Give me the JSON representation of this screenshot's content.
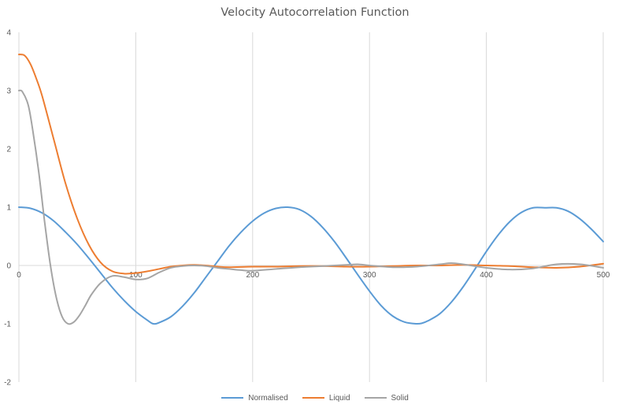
{
  "chart_data": {
    "type": "line",
    "title": "Velocity Autocorrelation Function",
    "xlabel": "",
    "ylabel": "",
    "xlim": [
      0,
      500
    ],
    "ylim": [
      -2,
      4
    ],
    "x_ticks": [
      {
        "value": 0,
        "label": "0"
      },
      {
        "value": 100,
        "label": "100"
      },
      {
        "value": 200,
        "label": "200"
      },
      {
        "value": 300,
        "label": "300"
      },
      {
        "value": 400,
        "label": "400"
      },
      {
        "value": 500,
        "label": "500"
      }
    ],
    "y_ticks": [
      {
        "value": 4,
        "label": "4"
      },
      {
        "value": 3,
        "label": "3"
      },
      {
        "value": 2,
        "label": "2"
      },
      {
        "value": 1,
        "label": "1"
      },
      {
        "value": 0,
        "label": "0"
      },
      {
        "value": -1,
        "label": "-1"
      },
      {
        "value": -2,
        "label": "-2"
      }
    ],
    "grid": "vertical",
    "legend_position": "bottom",
    "series": [
      {
        "name": "Normalised",
        "color": "#5b9bd5",
        "x": [
          0,
          10,
          20,
          30,
          40,
          50,
          60,
          70,
          80,
          90,
          100,
          110,
          115,
          120,
          130,
          140,
          150,
          160,
          170,
          180,
          190,
          200,
          210,
          220,
          230,
          240,
          250,
          260,
          270,
          280,
          290,
          300,
          310,
          320,
          330,
          340,
          345,
          350,
          360,
          370,
          380,
          390,
          400,
          410,
          420,
          430,
          440,
          450,
          460,
          470,
          480,
          490,
          500
        ],
        "y": [
          1.0,
          0.98,
          0.9,
          0.76,
          0.57,
          0.36,
          0.12,
          -0.13,
          -0.38,
          -0.6,
          -0.79,
          -0.94,
          -1.0,
          -0.98,
          -0.88,
          -0.7,
          -0.47,
          -0.2,
          0.07,
          0.34,
          0.57,
          0.76,
          0.9,
          0.98,
          1.0,
          0.96,
          0.84,
          0.65,
          0.41,
          0.13,
          -0.16,
          -0.44,
          -0.69,
          -0.87,
          -0.97,
          -1.0,
          -0.99,
          -0.95,
          -0.83,
          -0.63,
          -0.37,
          -0.07,
          0.24,
          0.52,
          0.75,
          0.91,
          0.99,
          0.99,
          0.99,
          0.93,
          0.8,
          0.62,
          0.41
        ]
      },
      {
        "name": "Liquid",
        "color": "#ed7d31",
        "x": [
          0,
          5,
          10,
          15,
          20,
          30,
          40,
          50,
          60,
          70,
          80,
          90,
          100,
          110,
          120,
          130,
          140,
          150,
          160,
          170,
          180,
          200,
          220,
          240,
          260,
          280,
          300,
          320,
          340,
          360,
          380,
          400,
          420,
          440,
          460,
          480,
          500
        ],
        "y": [
          3.62,
          3.6,
          3.45,
          3.2,
          2.9,
          2.15,
          1.4,
          0.8,
          0.35,
          0.05,
          -0.1,
          -0.14,
          -0.13,
          -0.1,
          -0.06,
          -0.02,
          0.0,
          0.01,
          0.0,
          -0.02,
          -0.03,
          -0.02,
          -0.02,
          -0.01,
          -0.01,
          -0.02,
          -0.02,
          -0.01,
          0.0,
          0.0,
          0.01,
          0.0,
          -0.01,
          -0.03,
          -0.04,
          -0.02,
          0.03
        ]
      },
      {
        "name": "Solid",
        "color": "#a5a5a5",
        "x": [
          0,
          3,
          8,
          12,
          17,
          22,
          27,
          32,
          37,
          42,
          47,
          52,
          57,
          62,
          70,
          80,
          90,
          100,
          110,
          120,
          130,
          140,
          150,
          160,
          170,
          180,
          190,
          200,
          220,
          240,
          260,
          280,
          290,
          300,
          320,
          340,
          360,
          370,
          380,
          400,
          420,
          440,
          460,
          480,
          500
        ],
        "y": [
          3.0,
          2.98,
          2.75,
          2.3,
          1.6,
          0.75,
          0.0,
          -0.55,
          -0.88,
          -1.0,
          -0.97,
          -0.85,
          -0.68,
          -0.5,
          -0.3,
          -0.18,
          -0.2,
          -0.24,
          -0.22,
          -0.12,
          -0.04,
          -0.01,
          0.0,
          -0.01,
          -0.04,
          -0.06,
          -0.08,
          -0.09,
          -0.06,
          -0.03,
          -0.01,
          0.01,
          0.02,
          0.0,
          -0.03,
          -0.02,
          0.02,
          0.04,
          0.02,
          -0.04,
          -0.07,
          -0.05,
          0.02,
          0.02,
          -0.04
        ]
      }
    ]
  }
}
